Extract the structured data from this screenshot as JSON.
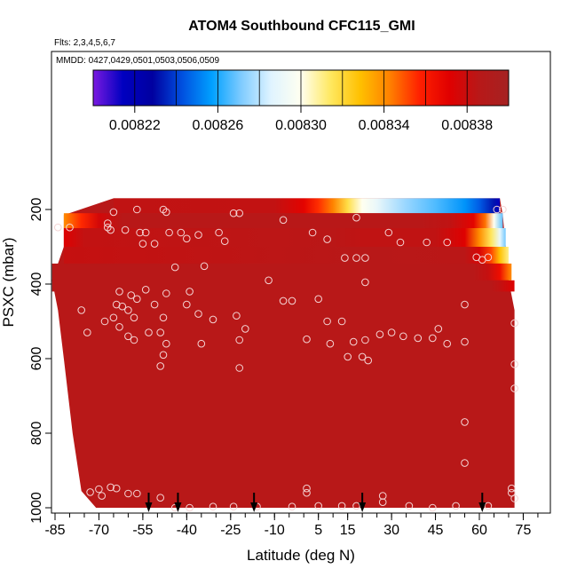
{
  "chart_data": {
    "type": "heatmap",
    "title": "ATOM4 Southbound CFC115_GMI",
    "subtitle_flights": "Flts: 2,3,4,5,6,7",
    "subtitle_dates": "MMDD: 0427,0429,0501,0503,0506,0509",
    "xlabel": "Latitude (deg N)",
    "ylabel": "PSXC (mbar)",
    "xlim": [
      -87,
      80
    ],
    "ylim": [
      1000,
      0
    ],
    "x_ticks": [
      -85,
      -70,
      -55,
      -40,
      -25,
      -10,
      5,
      15,
      30,
      45,
      60,
      75
    ],
    "x_tick_labels": [
      "-85",
      "-70",
      "-55",
      "-40",
      "-25",
      "-10",
      "5",
      "15",
      "30",
      "45",
      "60",
      "75"
    ],
    "x_minor_step": 5,
    "y_ticks": [
      200,
      400,
      600,
      800,
      1000
    ],
    "y_tick_labels": [
      "200",
      "400",
      "600",
      "800",
      "1000"
    ],
    "colorbar": {
      "min": 0.0082,
      "max": 0.0084,
      "tick_values": [
        0.00822,
        0.00826,
        0.0083,
        0.00834,
        0.00838
      ],
      "tick_labels": [
        "0.00822",
        "0.00826",
        "0.00830",
        "0.00834",
        "0.00838"
      ],
      "colors": [
        "#7a1ae0",
        "#0000c0",
        "#0000a0",
        "#0050e0",
        "#00a0ff",
        "#80ccff",
        "#e0f4ff",
        "#fffff0",
        "#ffe860",
        "#ffc000",
        "#ff8000",
        "#ff2000",
        "#e00000",
        "#b81818",
        "#a52222"
      ]
    },
    "background_value": 0.008386,
    "background_color": "#a52222",
    "field_extent": [
      {
        "p": 170,
        "lat_min": -65,
        "lat_max": 67
      },
      {
        "p": 215,
        "lat_min": -82,
        "lat_max": 68
      },
      {
        "p": 300,
        "lat_min": -82,
        "lat_max": 69
      },
      {
        "p": 390,
        "lat_min": -86,
        "lat_max": 70
      },
      {
        "p": 470,
        "lat_min": -84,
        "lat_max": 72
      },
      {
        "p": 600,
        "lat_min": -82,
        "lat_max": 72
      },
      {
        "p": 800,
        "lat_min": -79,
        "lat_max": 72
      },
      {
        "p": 955,
        "lat_min": -76,
        "lat_max": 72
      },
      {
        "p": 1000,
        "lat_min": -71,
        "lat_max": 72
      }
    ],
    "gradient_bands": [
      {
        "p_top": 170,
        "p_bottom": 210,
        "lat_start": -65,
        "lat_end": 67,
        "stops": [
          [
            -65,
            0.008383
          ],
          [
            -10,
            0.008382
          ],
          [
            0,
            0.00837
          ],
          [
            5,
            0.008355
          ],
          [
            10,
            0.008342
          ],
          [
            15,
            0.008318
          ],
          [
            20,
            0.0083
          ],
          [
            25,
            0.00829
          ],
          [
            35,
            0.008275
          ],
          [
            45,
            0.008266
          ],
          [
            55,
            0.008255
          ],
          [
            60,
            0.008245
          ],
          [
            65,
            0.008232
          ],
          [
            67,
            0.008215
          ]
        ]
      },
      {
        "p_top": 210,
        "p_bottom": 250,
        "lat_start": -82,
        "lat_end": 68,
        "stops": [
          [
            -82,
            0.00834
          ],
          [
            -76,
            0.008356
          ],
          [
            -70,
            0.008376
          ],
          [
            -62,
            0.008386
          ],
          [
            40,
            0.008386
          ],
          [
            50,
            0.008383
          ],
          [
            58,
            0.00837
          ],
          [
            62,
            0.008345
          ],
          [
            65,
            0.0083
          ],
          [
            68,
            0.008268
          ]
        ]
      },
      {
        "p_top": 250,
        "p_bottom": 300,
        "lat_start": -82,
        "lat_end": 69,
        "stops": [
          [
            -82,
            0.008372
          ],
          [
            -75,
            0.008382
          ],
          [
            10,
            0.008385
          ],
          [
            20,
            0.008383
          ],
          [
            45,
            0.008383
          ],
          [
            55,
            0.008372
          ],
          [
            60,
            0.00834
          ],
          [
            64,
            0.008315
          ],
          [
            67,
            0.00829
          ],
          [
            69,
            0.00827
          ]
        ]
      },
      {
        "p_top": 300,
        "p_bottom": 345,
        "lat_start": -82,
        "lat_end": 70,
        "stops": [
          [
            -82,
            0.008381
          ],
          [
            20,
            0.008386
          ],
          [
            55,
            0.008385
          ],
          [
            60,
            0.008375
          ],
          [
            64,
            0.008352
          ],
          [
            67,
            0.008328
          ],
          [
            70,
            0.00831
          ]
        ]
      },
      {
        "p_top": 345,
        "p_bottom": 390,
        "lat_start": -86,
        "lat_end": 71,
        "stops": [
          [
            -86,
            0.008386
          ],
          [
            58,
            0.008386
          ],
          [
            63,
            0.008381
          ],
          [
            67,
            0.008365
          ],
          [
            70,
            0.008345
          ],
          [
            71,
            0.00834
          ]
        ]
      },
      {
        "p_top": 390,
        "p_bottom": 420,
        "lat_start": -86,
        "lat_end": 72,
        "stops": [
          [
            -86,
            0.008386
          ],
          [
            64,
            0.008386
          ],
          [
            67,
            0.008382
          ],
          [
            70,
            0.008376
          ],
          [
            72,
            0.008372
          ]
        ]
      }
    ],
    "sample_points": [
      {
        "lat": -65,
        "p": 207
      },
      {
        "lat": -57,
        "p": 200
      },
      {
        "lat": -48,
        "p": 200
      },
      {
        "lat": -47,
        "p": 207
      },
      {
        "lat": -24,
        "p": 210
      },
      {
        "lat": -22,
        "p": 210
      },
      {
        "lat": -7,
        "p": 228
      },
      {
        "lat": 18,
        "p": 222
      },
      {
        "lat": 66,
        "p": 200
      },
      {
        "lat": 68,
        "p": 200
      },
      {
        "lat": -84,
        "p": 248
      },
      {
        "lat": -80,
        "p": 248
      },
      {
        "lat": -67,
        "p": 237
      },
      {
        "lat": -67,
        "p": 248
      },
      {
        "lat": -66,
        "p": 255
      },
      {
        "lat": -61,
        "p": 255
      },
      {
        "lat": -56,
        "p": 262
      },
      {
        "lat": -54,
        "p": 262
      },
      {
        "lat": -46,
        "p": 262
      },
      {
        "lat": -42,
        "p": 262
      },
      {
        "lat": -29,
        "p": 262
      },
      {
        "lat": -36,
        "p": 268
      },
      {
        "lat": -40,
        "p": 278
      },
      {
        "lat": -55,
        "p": 292
      },
      {
        "lat": -51,
        "p": 292
      },
      {
        "lat": -27,
        "p": 285
      },
      {
        "lat": 3,
        "p": 262
      },
      {
        "lat": 8,
        "p": 280
      },
      {
        "lat": 33,
        "p": 288
      },
      {
        "lat": 42,
        "p": 288
      },
      {
        "lat": 49,
        "p": 288
      },
      {
        "lat": 29,
        "p": 262
      },
      {
        "lat": 14,
        "p": 330
      },
      {
        "lat": 18,
        "p": 330
      },
      {
        "lat": 21,
        "p": 330
      },
      {
        "lat": 59,
        "p": 328
      },
      {
        "lat": 61,
        "p": 335
      },
      {
        "lat": 63,
        "p": 328
      },
      {
        "lat": -44,
        "p": 355
      },
      {
        "lat": -34,
        "p": 352
      },
      {
        "lat": -12,
        "p": 390
      },
      {
        "lat": 21,
        "p": 395
      },
      {
        "lat": -63,
        "p": 420
      },
      {
        "lat": -59,
        "p": 430
      },
      {
        "lat": -57,
        "p": 440
      },
      {
        "lat": -54,
        "p": 415
      },
      {
        "lat": -47,
        "p": 425
      },
      {
        "lat": -39,
        "p": 420
      },
      {
        "lat": -64,
        "p": 455
      },
      {
        "lat": -62,
        "p": 460
      },
      {
        "lat": -60,
        "p": 470
      },
      {
        "lat": -76,
        "p": 470
      },
      {
        "lat": -58,
        "p": 490
      },
      {
        "lat": -48,
        "p": 490
      },
      {
        "lat": -51,
        "p": 455
      },
      {
        "lat": -40,
        "p": 455
      },
      {
        "lat": -36,
        "p": 480
      },
      {
        "lat": -31,
        "p": 495
      },
      {
        "lat": -23,
        "p": 485
      },
      {
        "lat": -7,
        "p": 445
      },
      {
        "lat": -4,
        "p": 445
      },
      {
        "lat": 5,
        "p": 440
      },
      {
        "lat": 55,
        "p": 455
      },
      {
        "lat": 72,
        "p": 505
      },
      {
        "lat": -65,
        "p": 490
      },
      {
        "lat": -68,
        "p": 500
      },
      {
        "lat": -63,
        "p": 515
      },
      {
        "lat": -74,
        "p": 530
      },
      {
        "lat": -60,
        "p": 540
      },
      {
        "lat": -53,
        "p": 530
      },
      {
        "lat": -49,
        "p": 530
      },
      {
        "lat": -20,
        "p": 520
      },
      {
        "lat": 8,
        "p": 500
      },
      {
        "lat": 13,
        "p": 500
      },
      {
        "lat": -58,
        "p": 550
      },
      {
        "lat": -47,
        "p": 560
      },
      {
        "lat": -35,
        "p": 560
      },
      {
        "lat": -22,
        "p": 550
      },
      {
        "lat": 1,
        "p": 548
      },
      {
        "lat": 9,
        "p": 560
      },
      {
        "lat": 17,
        "p": 555
      },
      {
        "lat": 21,
        "p": 550
      },
      {
        "lat": 26,
        "p": 535
      },
      {
        "lat": 30,
        "p": 530
      },
      {
        "lat": 34,
        "p": 540
      },
      {
        "lat": 39,
        "p": 545
      },
      {
        "lat": 44,
        "p": 545
      },
      {
        "lat": 49,
        "p": 560
      },
      {
        "lat": 55,
        "p": 555
      },
      {
        "lat": 46,
        "p": 520
      },
      {
        "lat": -48,
        "p": 590
      },
      {
        "lat": -49,
        "p": 620
      },
      {
        "lat": -22,
        "p": 625
      },
      {
        "lat": 15,
        "p": 595
      },
      {
        "lat": 20,
        "p": 595
      },
      {
        "lat": 22,
        "p": 605
      },
      {
        "lat": 72,
        "p": 615
      },
      {
        "lat": 72,
        "p": 680
      },
      {
        "lat": 55,
        "p": 770
      },
      {
        "lat": 55,
        "p": 880
      },
      {
        "lat": -70,
        "p": 950
      },
      {
        "lat": -66,
        "p": 945
      },
      {
        "lat": -64,
        "p": 948
      },
      {
        "lat": -60,
        "p": 962
      },
      {
        "lat": -57,
        "p": 962
      },
      {
        "lat": -49,
        "p": 973
      },
      {
        "lat": -73,
        "p": 958
      },
      {
        "lat": -69,
        "p": 968
      },
      {
        "lat": -44,
        "p": 1000
      },
      {
        "lat": -39,
        "p": 1000
      },
      {
        "lat": -31,
        "p": 997
      },
      {
        "lat": -24,
        "p": 997
      },
      {
        "lat": -16,
        "p": 997
      },
      {
        "lat": -4,
        "p": 997
      },
      {
        "lat": 5,
        "p": 995
      },
      {
        "lat": 13,
        "p": 995
      },
      {
        "lat": 1,
        "p": 948
      },
      {
        "lat": 1,
        "p": 960
      },
      {
        "lat": 27,
        "p": 968
      },
      {
        "lat": 27,
        "p": 985
      },
      {
        "lat": 18,
        "p": 995
      },
      {
        "lat": 36,
        "p": 995
      },
      {
        "lat": 44,
        "p": 1000
      },
      {
        "lat": 52,
        "p": 995
      },
      {
        "lat": 63,
        "p": 995
      },
      {
        "lat": 71,
        "p": 948
      },
      {
        "lat": 71,
        "p": 960
      },
      {
        "lat": 72,
        "p": 975
      }
    ],
    "profile_markers_lat": [
      -53,
      -43,
      -17,
      20,
      61
    ]
  }
}
